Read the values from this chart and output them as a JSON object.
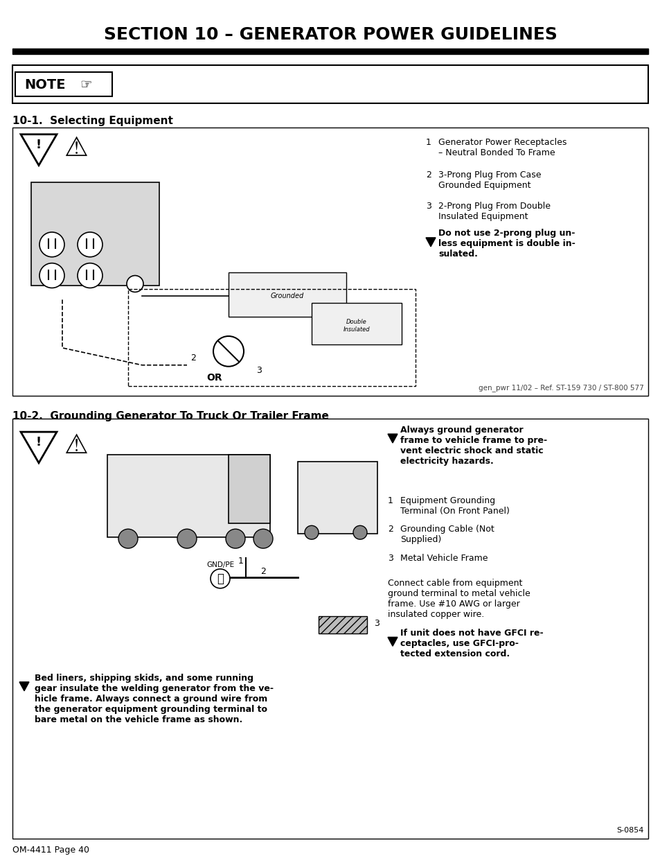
{
  "title": "SECTION 10 – GENERATOR POWER GUIDELINES",
  "background_color": "#ffffff",
  "note_label": "NOTE",
  "section1_heading": "10-1.  Selecting Equipment",
  "section2_heading": "10-2.  Grounding Generator To Truck Or Trailer Frame",
  "section1_items": [
    [
      "1",
      "Generator Power Receptacles\n– Neutral Bonded To Frame"
    ],
    [
      "2",
      "3-Prong Plug From Case\nGrounded Equipment"
    ],
    [
      "3",
      "2-Prong Plug From Double\nInsulated Equipment"
    ]
  ],
  "section1_warning": "Do not use 2-prong plug un-\nless equipment is double in-\nsulated.",
  "section2_warning_bold": "Always ground generator\nframe to vehicle frame to pre-\nvent electric shock and static\nelectricity hazards.",
  "section2_items": [
    [
      "1",
      "Equipment Grounding\nTerminal (On Front Panel)"
    ],
    [
      "2",
      "Grounding Cable (Not\nSupplied)"
    ],
    [
      "3",
      "Metal Vehicle Frame"
    ]
  ],
  "section2_text1": "Connect cable from equipment\nground terminal to metal vehicle\nframe. Use #10 AWG or larger\ninsulated copper wire.",
  "section2_warning2": "If unit does not have GFCI re-\nceptacles, use GFCI-pro-\ntected extension cord.",
  "section2_warning3": "Bed liners, shipping skids, and some running\ngear insulate the welding generator from the ve-\nhicle frame. Always connect a ground wire from\nthe generator equipment grounding terminal to\nbare metal on the vehicle frame as shown.",
  "footer_left": "OM-4411 Page 40",
  "footer_ref1": "gen_pwr 11/02 – Ref. ST-159 730 / ST-800 577",
  "footer_ref2": "S-0854"
}
